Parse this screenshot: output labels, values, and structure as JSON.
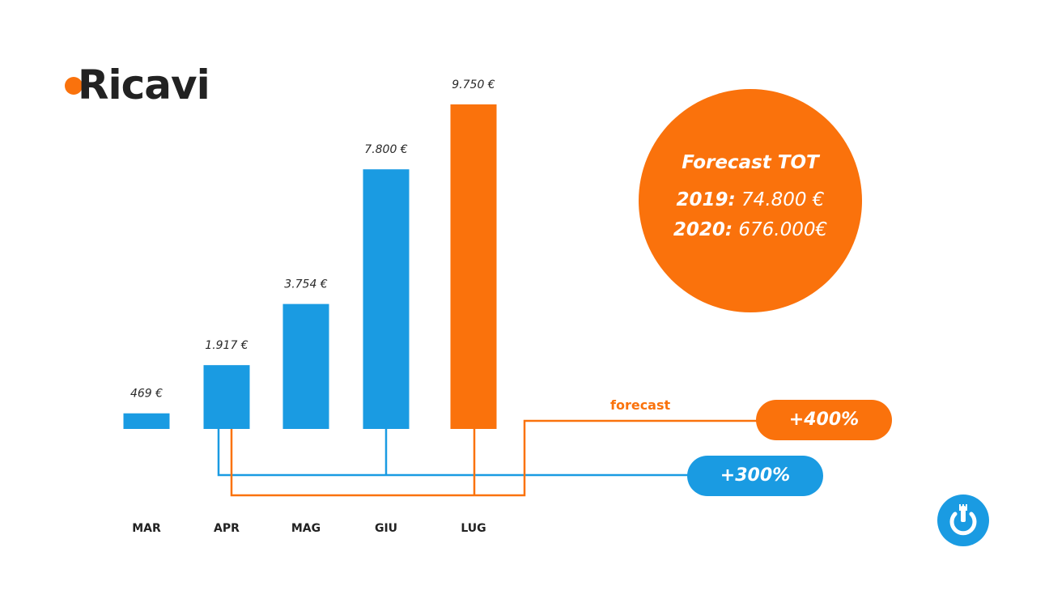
{
  "title": "Ricavi",
  "colors": {
    "blue": "#1a9be2",
    "orange": "#fa720c",
    "text": "#222222"
  },
  "chart_data": {
    "type": "bar",
    "categories": [
      "MAR",
      "APR",
      "MAG",
      "GIU",
      "LUG"
    ],
    "values": [
      469,
      1917,
      3754,
      7800,
      9750
    ],
    "value_labels": [
      "469 €",
      "1.917 €",
      "3.754 €",
      "7.800 €",
      "9.750 €"
    ],
    "bar_colors": [
      "#1a9be2",
      "#1a9be2",
      "#1a9be2",
      "#1a9be2",
      "#fa720c"
    ],
    "forecast_category": "LUG",
    "xlabel": "",
    "ylabel": "",
    "grid": false
  },
  "forecast_box": {
    "title": "Forecast TOT",
    "line1_year": "2019:",
    "line1_value": "74.800 €",
    "line2_year": "2020:",
    "line2_value": "676.000€"
  },
  "growth": {
    "forecast_label": "forecast",
    "forecast_pct": "+400%",
    "actual_pct": "+300%"
  },
  "logo_icon": "power-fork-icon"
}
